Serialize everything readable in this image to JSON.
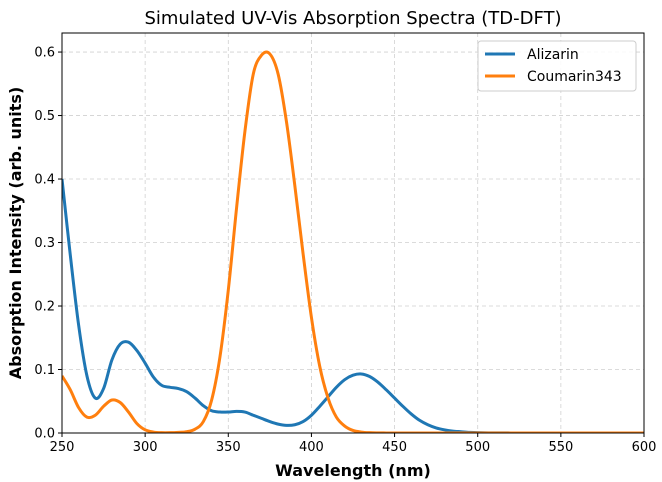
{
  "chart_data": {
    "type": "line",
    "title": "Simulated UV-Vis Absorption Spectra (TD-DFT)",
    "xlabel": "Wavelength (nm)",
    "ylabel": "Absorption Intensity (arb. units)",
    "xlim": [
      250,
      600
    ],
    "ylim": [
      0,
      0.63
    ],
    "x_ticks": [
      250,
      300,
      350,
      400,
      450,
      500,
      550,
      600
    ],
    "x_tick_labels": [
      "250",
      "300",
      "350",
      "400",
      "450",
      "500",
      "550",
      "600"
    ],
    "y_ticks": [
      0.0,
      0.1,
      0.2,
      0.3,
      0.4,
      0.5,
      0.6
    ],
    "y_tick_labels": [
      "0.0",
      "0.1",
      "0.2",
      "0.3",
      "0.4",
      "0.5",
      "0.6"
    ],
    "grid": true,
    "legend_position": "top-right",
    "series": [
      {
        "name": "Alizarin",
        "color": "#1f77b4",
        "x": [
          250,
          255,
          260,
          265,
          270,
          275,
          280,
          285,
          290,
          295,
          300,
          305,
          310,
          315,
          320,
          325,
          330,
          335,
          340,
          345,
          350,
          355,
          360,
          365,
          370,
          375,
          380,
          385,
          390,
          395,
          400,
          405,
          410,
          415,
          420,
          425,
          430,
          435,
          440,
          445,
          450,
          455,
          460,
          465,
          470,
          475,
          480,
          485,
          490,
          495,
          500,
          510,
          520,
          530,
          540,
          550,
          560,
          570,
          580,
          590,
          600
        ],
        "y": [
          0.4,
          0.28,
          0.17,
          0.09,
          0.055,
          0.07,
          0.115,
          0.14,
          0.143,
          0.13,
          0.11,
          0.088,
          0.075,
          0.072,
          0.07,
          0.065,
          0.055,
          0.043,
          0.035,
          0.033,
          0.033,
          0.034,
          0.033,
          0.028,
          0.023,
          0.018,
          0.014,
          0.012,
          0.013,
          0.018,
          0.028,
          0.042,
          0.057,
          0.072,
          0.084,
          0.091,
          0.093,
          0.089,
          0.08,
          0.068,
          0.055,
          0.042,
          0.03,
          0.02,
          0.013,
          0.008,
          0.005,
          0.003,
          0.002,
          0.001,
          0.0005,
          0.0002,
          0.0001,
          0,
          0,
          0,
          0,
          0,
          0,
          0,
          0
        ]
      },
      {
        "name": "Coumarin343",
        "color": "#ff7f0e",
        "x": [
          250,
          255,
          260,
          265,
          270,
          275,
          280,
          285,
          290,
          295,
          300,
          305,
          310,
          315,
          320,
          325,
          330,
          335,
          340,
          345,
          350,
          355,
          360,
          365,
          370,
          375,
          380,
          385,
          390,
          395,
          400,
          405,
          410,
          415,
          420,
          425,
          430,
          435,
          440,
          445,
          450,
          460,
          470,
          480,
          500,
          520,
          550,
          600
        ],
        "y": [
          0.09,
          0.068,
          0.04,
          0.025,
          0.028,
          0.042,
          0.052,
          0.048,
          0.033,
          0.015,
          0.005,
          0.0015,
          0.0005,
          0.0005,
          0.001,
          0.002,
          0.006,
          0.018,
          0.052,
          0.12,
          0.225,
          0.355,
          0.475,
          0.565,
          0.595,
          0.597,
          0.565,
          0.49,
          0.39,
          0.282,
          0.182,
          0.105,
          0.055,
          0.025,
          0.011,
          0.004,
          0.0015,
          0.0005,
          0.0002,
          0.0001,
          0,
          0,
          0,
          0,
          0,
          0,
          0,
          0
        ]
      }
    ]
  }
}
